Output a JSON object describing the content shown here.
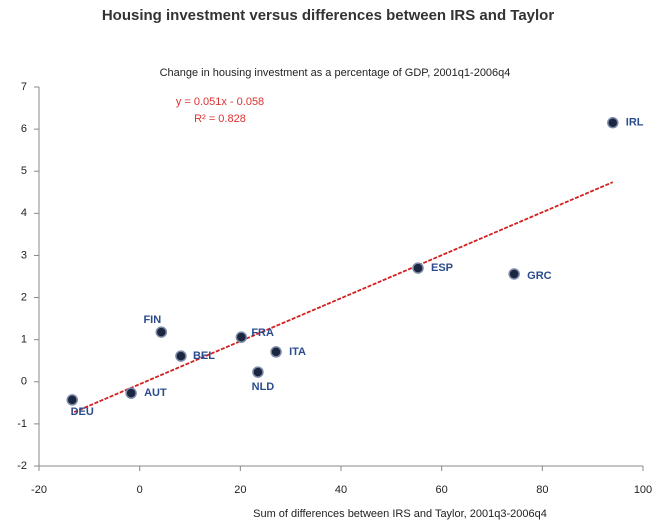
{
  "chart_data": {
    "type": "scatter",
    "title": "Housing investment versus differences between IRS and Taylor",
    "subtitle": "Change in housing investment as a percentage of GDP,  2001q1-2006q4",
    "x_label": "Sum of differences between IRS and Taylor, 2001q3-2006q4",
    "annotations": [
      "y = 0.051x - 0.058",
      "R² = 0.828"
    ],
    "series": [
      {
        "name": null,
        "color": "#1b2640",
        "labels": [
          "IRL",
          "ESP",
          "GRC",
          "FIN",
          "FRA",
          "BEL",
          "ITA",
          "NLD",
          "AUT",
          "DEU"
        ],
        "x": [
          94,
          55.3,
          74.4,
          4.3,
          20.2,
          8.2,
          27.1,
          23.5,
          -1.7,
          -13.4
        ],
        "values": [
          6.15,
          2.7,
          2.56,
          1.18,
          1.06,
          0.61,
          0.71,
          0.23,
          -0.27,
          -0.43
        ]
      }
    ],
    "trendline": {
      "color": "#d32020",
      "x": [
        -13,
        94
      ],
      "values": [
        -0.72,
        4.74
      ]
    },
    "xlim": [
      -20,
      100
    ],
    "xticks": [
      -20,
      0,
      20,
      40,
      60,
      80,
      100
    ],
    "ylim": [
      -2,
      7
    ],
    "yticks": [
      -2,
      -1,
      0,
      1,
      2,
      3,
      4,
      5,
      6,
      7
    ],
    "grid": false
  }
}
